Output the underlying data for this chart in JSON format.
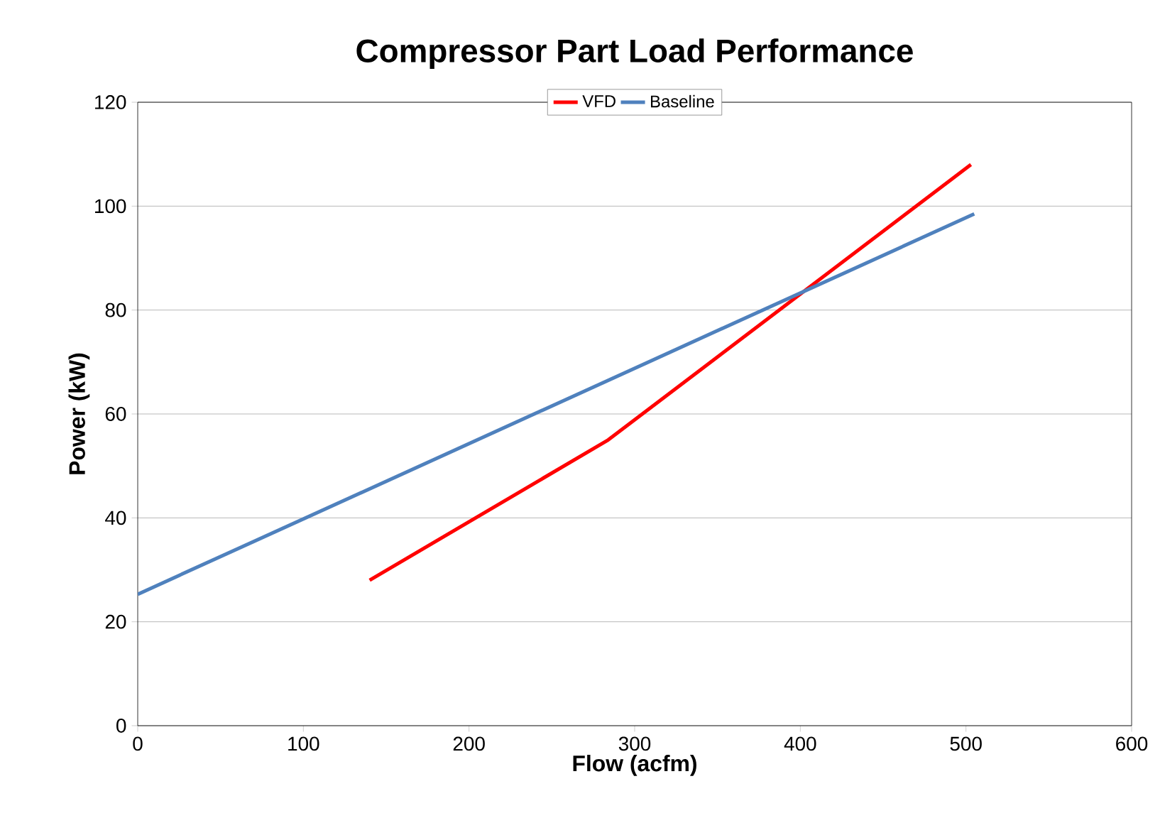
{
  "chart_data": {
    "type": "line",
    "title": "Compressor Part Load Performance",
    "xlabel": "Flow (acfm)",
    "ylabel": "Power (kW)",
    "xlim": [
      0,
      600
    ],
    "ylim": [
      0,
      120
    ],
    "xticks": [
      0,
      100,
      200,
      300,
      400,
      500,
      600
    ],
    "yticks": [
      0,
      20,
      40,
      60,
      80,
      100,
      120
    ],
    "grid": "y",
    "legend": "top",
    "line_style": "solid",
    "marker": "none",
    "series": [
      {
        "name": "VFD",
        "color": "#ff0000",
        "x": [
          140,
          284,
          503
        ],
        "values": [
          28,
          55,
          108
        ]
      },
      {
        "name": "Baseline",
        "color": "#4f81bd",
        "x": [
          0,
          505
        ],
        "values": [
          25.3,
          98.5
        ]
      }
    ]
  }
}
